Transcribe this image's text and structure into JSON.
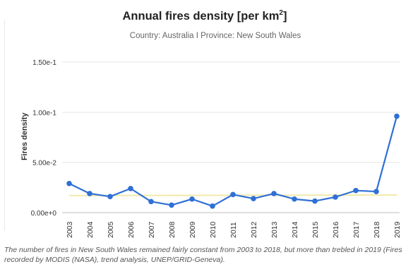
{
  "chart_data": {
    "type": "line",
    "title": "Annual fires density [per km",
    "title_sup": "2",
    "title_close": "]",
    "subtitle": "Country: Australia I Province: New South Wales",
    "ylabel": "Fires density",
    "xlabel": "",
    "ylim": [
      0,
      0.15
    ],
    "yticks": [
      {
        "value": 0,
        "label": "0.00e+0"
      },
      {
        "value": 0.05,
        "label": "5.00e-2"
      },
      {
        "value": 0.1,
        "label": "1.00e-1"
      },
      {
        "value": 0.15,
        "label": "1.50e-1"
      }
    ],
    "categories": [
      "2003",
      "2004",
      "2005",
      "2006",
      "2007",
      "2008",
      "2009",
      "2010",
      "2011",
      "2012",
      "2013",
      "2014",
      "2015",
      "2016",
      "2017",
      "2018",
      "2019"
    ],
    "series": [
      {
        "name": "",
        "values": [
          0.029,
          0.019,
          0.016,
          0.024,
          0.011,
          0.0075,
          0.0135,
          0.0065,
          0.018,
          0.014,
          0.019,
          0.0135,
          0.0115,
          0.0155,
          0.022,
          0.021,
          0.096
        ],
        "color": "#2f6fd6"
      }
    ],
    "trend": {
      "values": [
        0.017,
        0.0175
      ],
      "color": "#f2e9a8"
    },
    "grid": true,
    "legend": "none"
  },
  "caption": "The number of fires in New South Wales remained fairly constant from 2003 to 2018, but more than trebled in 2019 (Fires recorded by MODIS (NASA), trend analysis, UNEP/GRID-Geneva)."
}
